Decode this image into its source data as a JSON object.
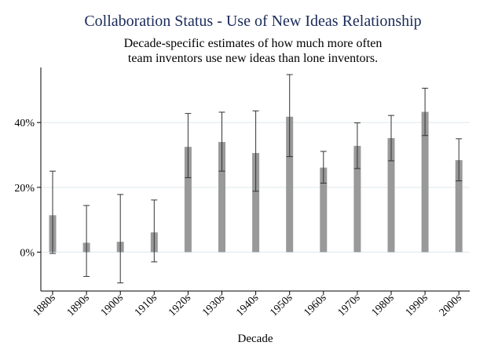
{
  "chart_data": {
    "type": "bar",
    "title": "Collaboration Status - Use of New Ideas Relationship",
    "subtitle_lines": [
      "Decade-specific estimates of how much more often",
      "team inventors use new ideas than lone inventors."
    ],
    "xlabel": "Decade",
    "ylabel": "",
    "categories": [
      "1880s",
      "1890s",
      "1900s",
      "1910s",
      "1920s",
      "1930s",
      "1940s",
      "1950s",
      "1960s",
      "1970s",
      "1980s",
      "1990s",
      "2000s"
    ],
    "values": [
      11.4,
      2.9,
      3.2,
      6.1,
      32.5,
      34.0,
      30.6,
      41.8,
      26.1,
      32.8,
      35.2,
      43.3,
      28.4
    ],
    "error_low": [
      -0.4,
      -7.5,
      -9.5,
      -3.0,
      23.0,
      25.0,
      18.8,
      29.5,
      21.3,
      25.8,
      28.2,
      36.0,
      22.0
    ],
    "error_high": [
      25.0,
      14.4,
      17.8,
      16.1,
      42.8,
      43.2,
      43.6,
      54.8,
      31.1,
      39.9,
      42.2,
      50.6,
      35.0
    ],
    "ylim": [
      -12,
      57
    ],
    "yticks": [
      0,
      20,
      40
    ],
    "ytick_labels": [
      "0%",
      "20%",
      "40%"
    ],
    "grid": true,
    "colors": {
      "bar": "#999999",
      "error_bar": "#333333",
      "grid": "#dde8ee",
      "title": "#1a2a5a"
    }
  }
}
